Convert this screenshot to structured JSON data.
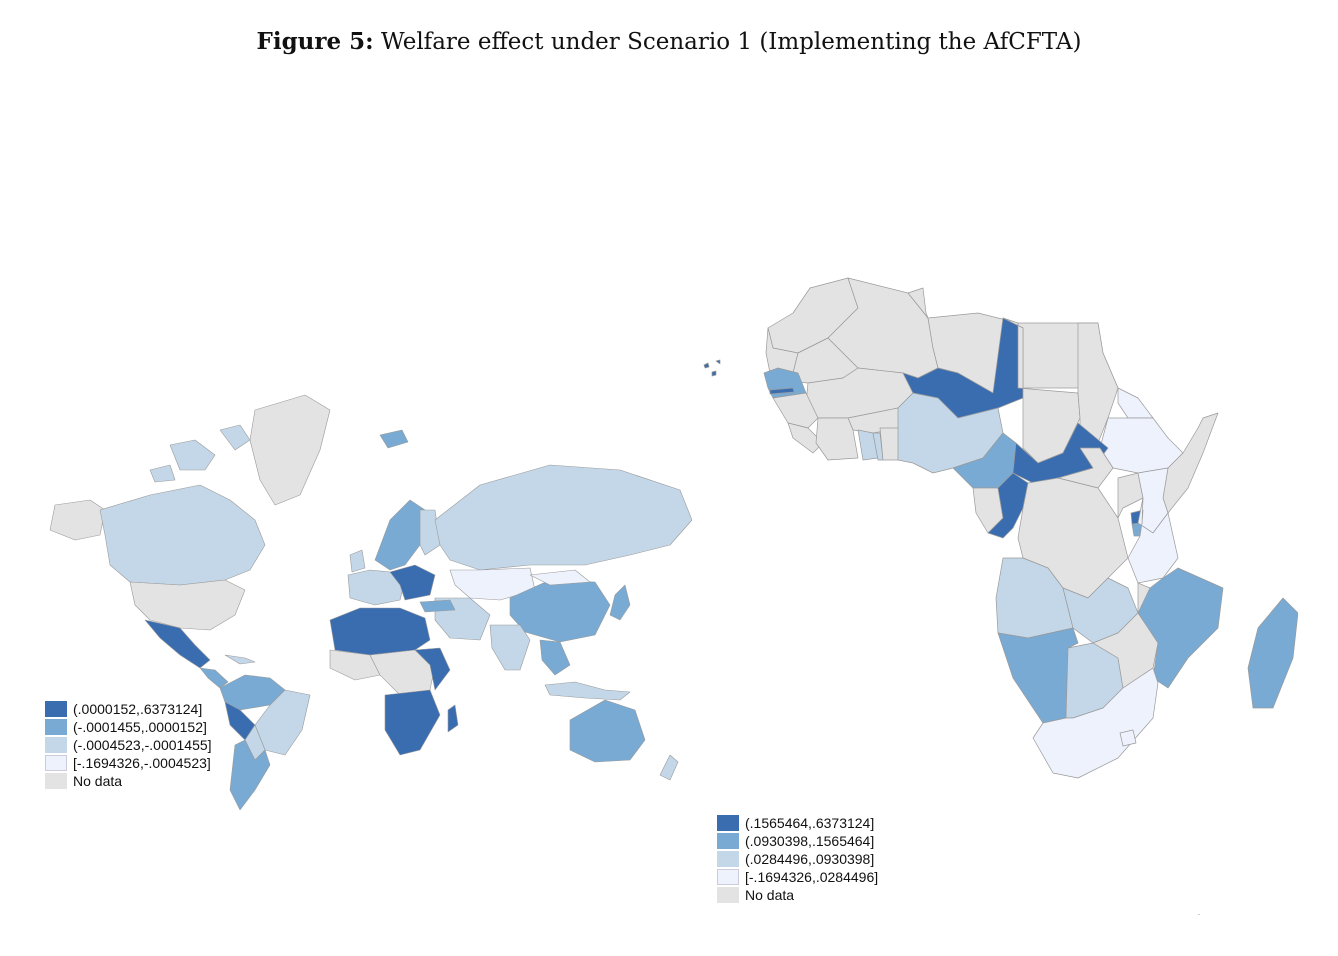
{
  "title": {
    "label": "Figure 5:",
    "text": "Welfare effect under Scenario 1 (Implementing the AfCFTA)"
  },
  "colors": {
    "c1": "#3a6db0",
    "c2": "#78aad3",
    "c3": "#c3d7e8",
    "c4": "#eef2fd",
    "nodata": "#e3e3e3",
    "border": "#9a9a9a"
  },
  "legend_world": {
    "items": [
      {
        "label": "(.0000152,.6373124]",
        "color": "#3a6db0"
      },
      {
        "label": "(-.0001455,.0000152]",
        "color": "#78aad3"
      },
      {
        "label": "(-.0004523,-.0001455]",
        "color": "#c3d7e8"
      },
      {
        "label": "[-.1694326,-.0004523]",
        "color": "#eef2fd"
      },
      {
        "label": "No data",
        "color": "#e3e3e3"
      }
    ]
  },
  "legend_africa": {
    "items": [
      {
        "label": "(.1565464,.6373124]",
        "color": "#3a6db0"
      },
      {
        "label": "(.0930398,.1565464]",
        "color": "#78aad3"
      },
      {
        "label": "(.0284496,.0930398]",
        "color": "#c3d7e8"
      },
      {
        "label": "[-.1694326,.0284496]",
        "color": "#eef2fd"
      },
      {
        "label": "No data",
        "color": "#e3e3e3"
      }
    ]
  }
}
